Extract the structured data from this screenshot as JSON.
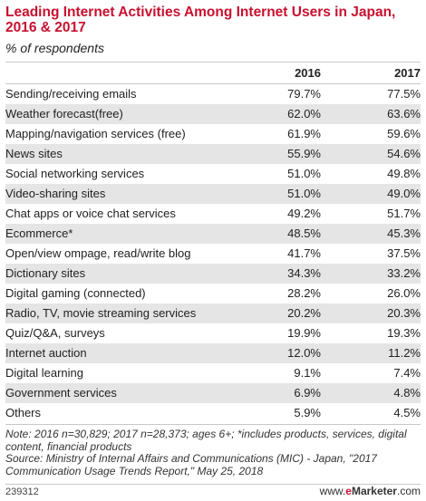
{
  "title": "Leading Internet Activities Among Internet Users in Japan, 2016 & 2017",
  "subtitle": "% of respondents",
  "chart_data": {
    "type": "table",
    "columns": [
      "2016",
      "2017"
    ],
    "rows": [
      {
        "label": "Sending/receiving emails",
        "v2016": "79.7%",
        "v2017": "77.5%"
      },
      {
        "label": "Weather forecast(free)",
        "v2016": "62.0%",
        "v2017": "63.6%"
      },
      {
        "label": "Mapping/navigation services (free)",
        "v2016": "61.9%",
        "v2017": "59.6%"
      },
      {
        "label": "News sites",
        "v2016": "55.9%",
        "v2017": "54.6%"
      },
      {
        "label": "Social networking services",
        "v2016": "51.0%",
        "v2017": "49.8%"
      },
      {
        "label": "Video-sharing sites",
        "v2016": "51.0%",
        "v2017": "49.0%"
      },
      {
        "label": "Chat apps or voice chat services",
        "v2016": "49.2%",
        "v2017": "51.7%"
      },
      {
        "label": "Ecommerce*",
        "v2016": "48.5%",
        "v2017": "45.3%"
      },
      {
        "label": "Open/view ompage, read/write blog",
        "v2016": "41.7%",
        "v2017": "37.5%"
      },
      {
        "label": "Dictionary sites",
        "v2016": "34.3%",
        "v2017": "33.2%"
      },
      {
        "label": "Digital gaming (connected)",
        "v2016": "28.2%",
        "v2017": "26.0%"
      },
      {
        "label": "Radio, TV, movie streaming services",
        "v2016": "20.2%",
        "v2017": "20.3%"
      },
      {
        "label": "Quiz/Q&A, surveys",
        "v2016": "19.9%",
        "v2017": "19.3%"
      },
      {
        "label": "Internet auction",
        "v2016": "12.0%",
        "v2017": "11.2%"
      },
      {
        "label": "Digital learning",
        "v2016": "9.1%",
        "v2017": "7.4%"
      },
      {
        "label": "Government services",
        "v2016": "6.9%",
        "v2017": "4.8%"
      },
      {
        "label": "Others",
        "v2016": "5.9%",
        "v2017": "4.5%"
      }
    ]
  },
  "note": "Note: 2016 n=30,829; 2017 n=28,373; ages 6+; *includes products, services, digital content, financial products",
  "source": "Source: Ministry of Internal Affairs and Communications (MIC) - Japan, \"2017 Communication Usage Trends Report,\" May 25, 2018",
  "footer": {
    "chart_id": "239312",
    "web_prefix": "www.",
    "brand_e": "e",
    "brand_rest": "Marketer",
    "web_suffix": ".com"
  },
  "colors": {
    "title": "#c8102e",
    "stripe": "#e5e5e5",
    "rule": "#c8c8c8"
  }
}
